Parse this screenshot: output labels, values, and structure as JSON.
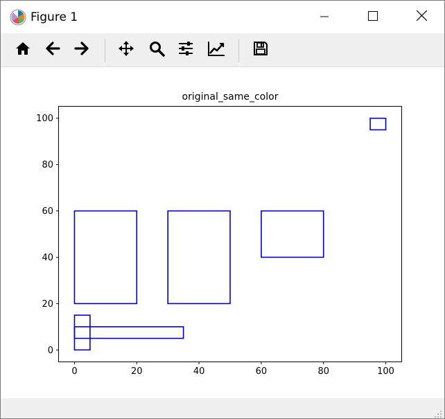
{
  "window": {
    "title": "Figure 1",
    "controls": [
      "minimize-icon",
      "maximize-icon",
      "close-icon"
    ]
  },
  "toolbar": {
    "buttons": [
      {
        "name": "home-button",
        "icon": "home-icon"
      },
      {
        "name": "back-button",
        "icon": "arrow-left-icon"
      },
      {
        "name": "forward-button",
        "icon": "arrow-right-icon"
      },
      {
        "name": "pan-button",
        "icon": "move-icon"
      },
      {
        "name": "zoom-button",
        "icon": "magnifier-icon"
      },
      {
        "name": "configure-subplots-button",
        "icon": "sliders-icon"
      },
      {
        "name": "edit-axis-button",
        "icon": "trend-chart-icon"
      },
      {
        "name": "save-button",
        "icon": "floppy-disk-icon"
      }
    ]
  },
  "chart_data": {
    "type": "rectangles",
    "title": "original_same_color",
    "xlabel": "",
    "ylabel": "",
    "xlim": [
      -5,
      105
    ],
    "ylim": [
      -5,
      105
    ],
    "xticks": [
      0,
      20,
      40,
      60,
      80,
      100
    ],
    "yticks": [
      0,
      20,
      40,
      60,
      80,
      100
    ],
    "grid": false,
    "edge_color": "#0000cc",
    "rectangles": [
      {
        "x": 0,
        "y": 20,
        "width": 20,
        "height": 40
      },
      {
        "x": 30,
        "y": 20,
        "width": 20,
        "height": 40
      },
      {
        "x": 60,
        "y": 40,
        "width": 20,
        "height": 20
      },
      {
        "x": 95,
        "y": 95,
        "width": 5,
        "height": 5
      },
      {
        "x": 0,
        "y": 0,
        "width": 5,
        "height": 15
      },
      {
        "x": 0,
        "y": 5,
        "width": 35,
        "height": 5
      }
    ]
  }
}
